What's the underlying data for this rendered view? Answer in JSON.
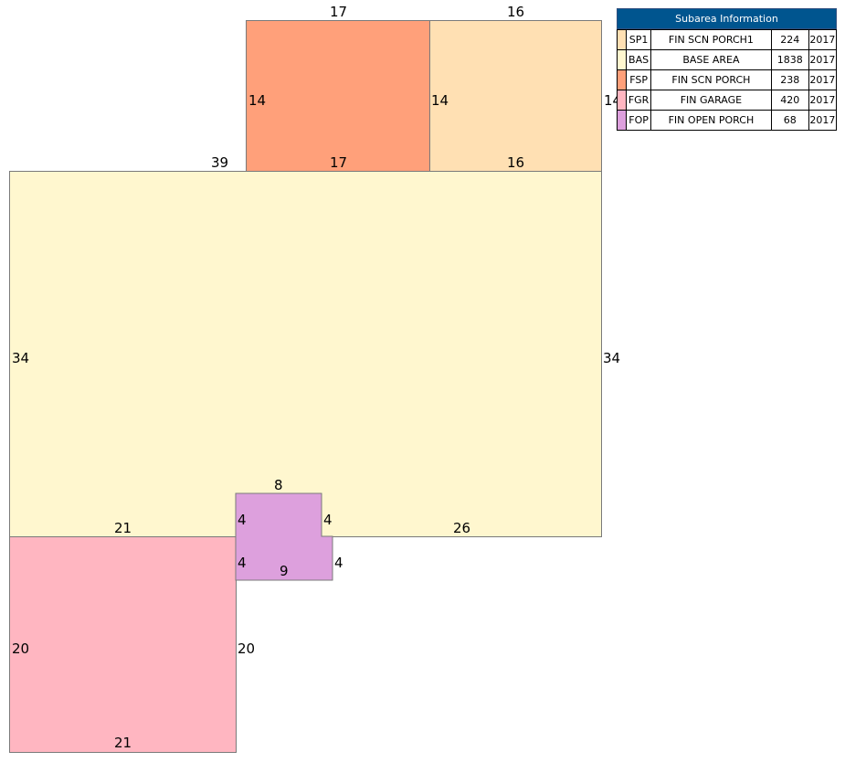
{
  "colors": {
    "SP1": "#ffe0b3",
    "BAS": "#fff7cf",
    "FSP": "#ffa07a",
    "FGR": "#ffb6c1",
    "FOP": "#dda0dd",
    "legend_header": "#00558f"
  },
  "sketch": {
    "fsp": {
      "top": "17",
      "left": "14",
      "right": "14",
      "bottom": "17"
    },
    "sp1": {
      "top": "16",
      "right": "14",
      "bottom": "16"
    },
    "bas": {
      "top_left": "39",
      "left": "34",
      "right": "34",
      "bottom_left": "21",
      "bottom_right": "26"
    },
    "fop": {
      "top": "8",
      "upper_left": "4",
      "upper_right": "4",
      "lower_left": "4",
      "lower_right": "4",
      "bottom": "9"
    },
    "fgr": {
      "left": "20",
      "right": "20",
      "bottom": "21"
    }
  },
  "legend": {
    "title": "Subarea Information",
    "rows": [
      {
        "code": "SP1",
        "desc": "FIN SCN PORCH1",
        "sqft": "224",
        "year": "2017",
        "swatch": "SP1"
      },
      {
        "code": "BAS",
        "desc": "BASE AREA",
        "sqft": "1838",
        "year": "2017",
        "swatch": "BAS"
      },
      {
        "code": "FSP",
        "desc": "FIN SCN PORCH",
        "sqft": "238",
        "year": "2017",
        "swatch": "FSP"
      },
      {
        "code": "FGR",
        "desc": "FIN GARAGE",
        "sqft": "420",
        "year": "2017",
        "swatch": "FGR"
      },
      {
        "code": "FOP",
        "desc": "FIN OPEN PORCH",
        "sqft": "68",
        "year": "2017",
        "swatch": "FOP"
      }
    ]
  }
}
